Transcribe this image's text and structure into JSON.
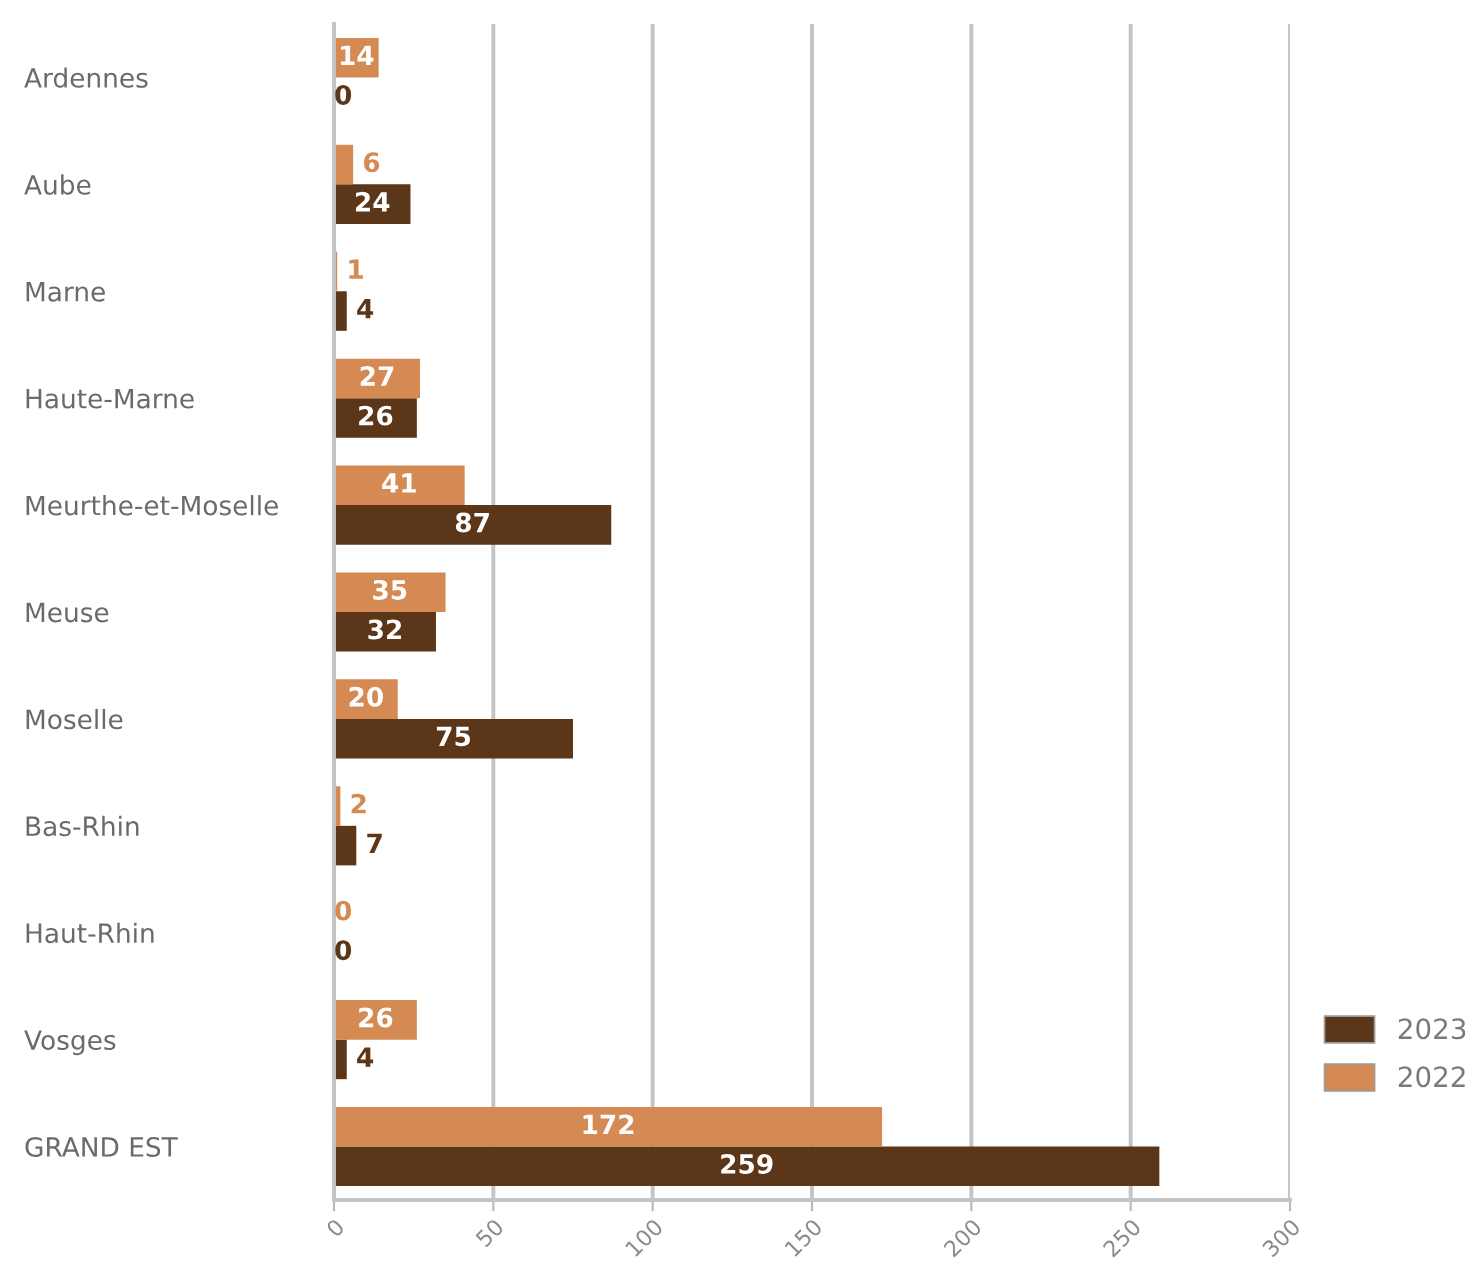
{
  "chart_data": {
    "type": "bar",
    "orientation": "horizontal",
    "categories": [
      "Ardennes",
      "Aube",
      "Marne",
      "Haute-Marne",
      "Meurthe-et-Moselle",
      "Meuse",
      "Moselle",
      "Bas-Rhin",
      "Haut-Rhin",
      "Vosges",
      "GRAND EST"
    ],
    "series": [
      {
        "name": "2023",
        "color": "#5c3618",
        "values": [
          0,
          24,
          4,
          26,
          87,
          32,
          75,
          7,
          0,
          4,
          259
        ]
      },
      {
        "name": "2022",
        "color": "#d48a52",
        "values": [
          14,
          6,
          1,
          27,
          41,
          35,
          20,
          2,
          0,
          26,
          172
        ]
      }
    ],
    "xlim": [
      0,
      300
    ],
    "xticks": [
      0,
      50,
      100,
      150,
      200,
      250,
      300
    ],
    "grid": "x",
    "legend": "bottom right",
    "data_labels": true
  }
}
